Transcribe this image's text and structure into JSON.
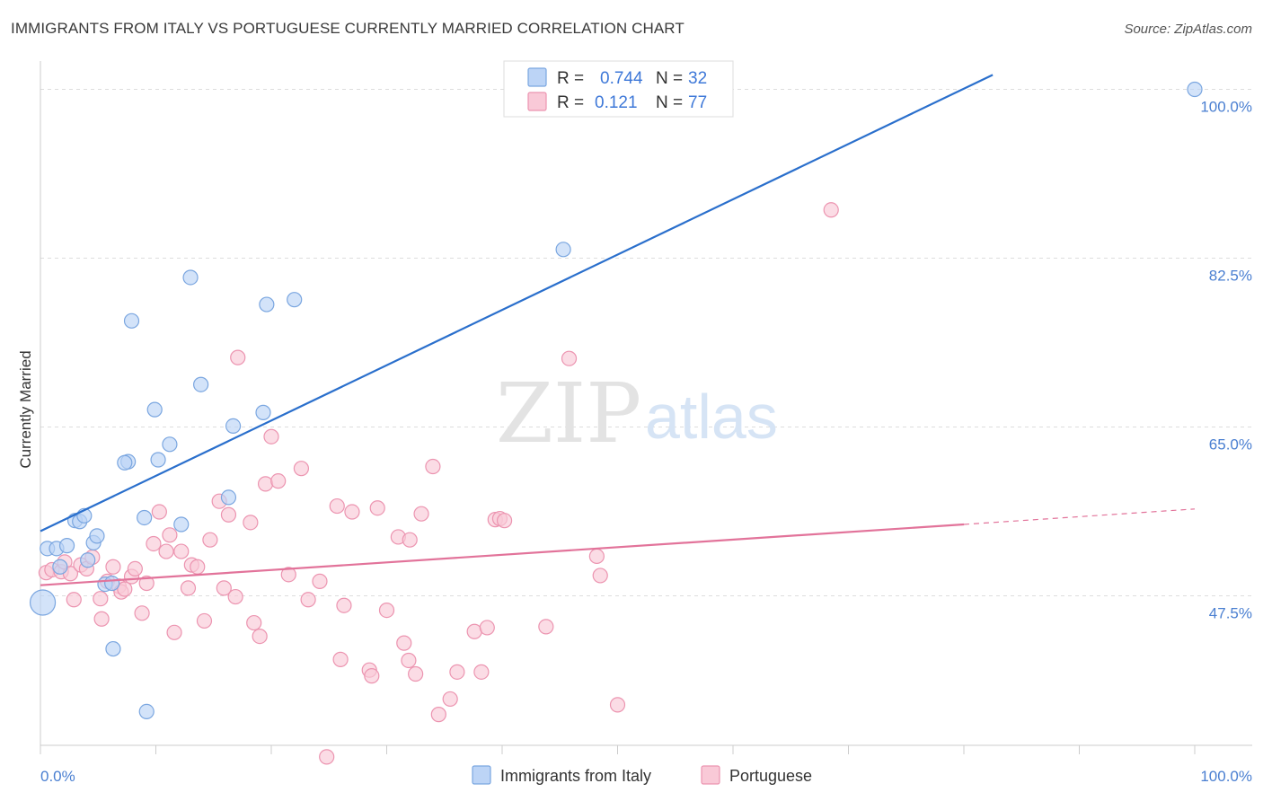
{
  "title": "IMMIGRANTS FROM ITALY VS PORTUGUESE CURRENTLY MARRIED CORRELATION CHART",
  "source": "Source: ZipAtlas.com",
  "watermark": {
    "zip": "ZIP",
    "atlas": "atlas"
  },
  "colors": {
    "italy_fill": "#bcd4f6",
    "italy_stroke": "#7aa6e0",
    "italy_line": "#2a6fcc",
    "portuguese_fill": "#f9c9d7",
    "portuguese_stroke": "#ec94b0",
    "portuguese_line": "#e2739a",
    "grid": "#dddddd",
    "tick_label": "#4a7fd1"
  },
  "legend": {
    "rows": [
      {
        "r_label": "R =",
        "r_value": "0.744",
        "n_label": "N =",
        "n_value": "32"
      },
      {
        "r_label": "R =",
        "r_value": "0.121",
        "n_label": "N =",
        "n_value": "77"
      }
    ]
  },
  "chart_data": {
    "type": "scatter",
    "title": "IMMIGRANTS FROM ITALY VS PORTUGUESE CURRENTLY MARRIED CORRELATION CHART",
    "xlabel": "",
    "ylabel": "Currently Married",
    "xlim": [
      0,
      100
    ],
    "ylim": [
      32,
      102
    ],
    "x_tick_labels": [
      "0.0%",
      "100.0%"
    ],
    "y_ticks": [
      47.5,
      65.0,
      82.5,
      100.0
    ],
    "y_tick_labels": [
      "47.5%",
      "65.0%",
      "82.5%",
      "100.0%"
    ],
    "grid": "horizontal dashed",
    "legend_placement": "top-center",
    "series": [
      {
        "name": "Immigrants from Italy",
        "r": 0.744,
        "n": 32,
        "trend": {
          "x": [
            0,
            82.5
          ],
          "y": [
            54.2,
            101.5
          ],
          "dashed_extension": false
        },
        "points": [
          [
            0.6,
            52.4
          ],
          [
            1.4,
            52.4
          ],
          [
            1.7,
            50.5
          ],
          [
            2.3,
            52.7
          ],
          [
            3.0,
            55.3
          ],
          [
            3.4,
            55.2
          ],
          [
            3.8,
            55.8
          ],
          [
            4.1,
            51.2
          ],
          [
            4.6,
            53.0
          ],
          [
            4.9,
            53.7
          ],
          [
            5.6,
            48.7
          ],
          [
            6.2,
            48.8
          ],
          [
            6.3,
            42.0
          ],
          [
            7.6,
            61.4
          ],
          [
            7.3,
            61.3
          ],
          [
            7.9,
            76.0
          ],
          [
            9.0,
            55.6
          ],
          [
            9.2,
            35.5
          ],
          [
            9.9,
            66.8
          ],
          [
            10.2,
            61.6
          ],
          [
            11.2,
            63.2
          ],
          [
            12.2,
            54.9
          ],
          [
            13.0,
            80.5
          ],
          [
            13.9,
            69.4
          ],
          [
            16.3,
            57.7
          ],
          [
            16.7,
            65.1
          ],
          [
            19.3,
            66.5
          ],
          [
            19.6,
            77.7
          ],
          [
            22.0,
            78.2
          ],
          [
            45.3,
            83.4
          ],
          [
            100.0,
            100.0
          ],
          [
            0.2,
            46.8
          ]
        ]
      },
      {
        "name": "Portuguese",
        "r": 0.121,
        "n": 77,
        "trend": {
          "x": [
            0,
            80
          ],
          "y": [
            48.6,
            54.9
          ],
          "dashed_extension": true,
          "dashed_to": [
            100,
            56.5
          ]
        },
        "points": [
          [
            0.5,
            49.9
          ],
          [
            1.0,
            50.2
          ],
          [
            1.8,
            50.0
          ],
          [
            2.1,
            51.0
          ],
          [
            2.6,
            49.8
          ],
          [
            2.9,
            47.1
          ],
          [
            3.5,
            50.7
          ],
          [
            4.0,
            50.3
          ],
          [
            4.5,
            51.5
          ],
          [
            5.2,
            47.2
          ],
          [
            5.3,
            45.1
          ],
          [
            5.8,
            49.0
          ],
          [
            6.3,
            50.5
          ],
          [
            6.8,
            48.5
          ],
          [
            7.0,
            47.9
          ],
          [
            7.3,
            48.2
          ],
          [
            7.9,
            49.5
          ],
          [
            8.2,
            50.3
          ],
          [
            8.8,
            45.7
          ],
          [
            9.2,
            48.8
          ],
          [
            9.8,
            52.9
          ],
          [
            10.3,
            56.2
          ],
          [
            10.9,
            52.1
          ],
          [
            11.2,
            53.8
          ],
          [
            11.6,
            43.7
          ],
          [
            12.2,
            52.1
          ],
          [
            12.8,
            48.3
          ],
          [
            13.1,
            50.7
          ],
          [
            13.6,
            50.5
          ],
          [
            14.2,
            44.9
          ],
          [
            14.7,
            53.3
          ],
          [
            15.5,
            57.3
          ],
          [
            15.9,
            48.3
          ],
          [
            16.3,
            55.9
          ],
          [
            16.9,
            47.4
          ],
          [
            17.1,
            72.2
          ],
          [
            18.2,
            55.1
          ],
          [
            18.5,
            44.7
          ],
          [
            19.0,
            43.3
          ],
          [
            19.5,
            59.1
          ],
          [
            20.0,
            64.0
          ],
          [
            20.6,
            59.4
          ],
          [
            21.5,
            49.7
          ],
          [
            22.6,
            60.7
          ],
          [
            23.2,
            47.1
          ],
          [
            24.2,
            49.0
          ],
          [
            24.8,
            30.8
          ],
          [
            25.7,
            56.8
          ],
          [
            26.0,
            40.9
          ],
          [
            26.3,
            46.5
          ],
          [
            27.0,
            56.2
          ],
          [
            28.5,
            39.8
          ],
          [
            28.7,
            39.2
          ],
          [
            29.2,
            56.6
          ],
          [
            30.0,
            46.0
          ],
          [
            31.0,
            53.6
          ],
          [
            31.5,
            42.6
          ],
          [
            31.9,
            40.8
          ],
          [
            32.0,
            53.3
          ],
          [
            32.5,
            39.4
          ],
          [
            33.0,
            56.0
          ],
          [
            34.0,
            60.9
          ],
          [
            34.5,
            35.2
          ],
          [
            35.5,
            36.8
          ],
          [
            36.1,
            39.6
          ],
          [
            37.6,
            43.8
          ],
          [
            38.2,
            39.6
          ],
          [
            38.7,
            44.2
          ],
          [
            39.4,
            55.4
          ],
          [
            39.8,
            55.5
          ],
          [
            40.2,
            55.3
          ],
          [
            43.8,
            44.3
          ],
          [
            45.8,
            72.1
          ],
          [
            48.2,
            51.6
          ],
          [
            48.5,
            49.6
          ],
          [
            50.0,
            36.2
          ],
          [
            68.5,
            87.5
          ]
        ]
      }
    ]
  },
  "bottom_legend": [
    {
      "label": "Immigrants from Italy"
    },
    {
      "label": "Portuguese"
    }
  ]
}
